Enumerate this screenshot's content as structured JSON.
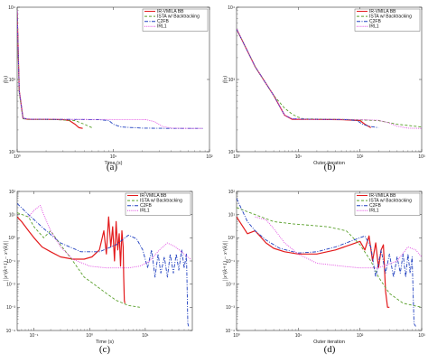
{
  "chart_data": [
    {
      "id": "a",
      "type": "line",
      "caption": "(a)",
      "xlabel": "Time (s)",
      "ylabel": "f(x)",
      "xscale": "log",
      "yscale": "log",
      "xlim": [
        1,
        100
      ],
      "ylim": [
        100,
        10000
      ],
      "xticks": [
        {
          "v": 1,
          "label": "10⁰"
        },
        {
          "v": 10,
          "label": "10¹"
        },
        {
          "v": 100,
          "label": "10²"
        }
      ],
      "yticks": [
        {
          "v": 100,
          "label": "10²"
        },
        {
          "v": 1000,
          "label": "10³"
        },
        {
          "v": 10000,
          "label": "10⁴"
        }
      ],
      "legend": "top-right",
      "series": [
        {
          "name": "IR-VMILA BB",
          "color": "#e31a1c",
          "dash": "solid",
          "x": [
            1,
            1.05,
            1.15,
            1.3,
            2,
            3,
            3.5,
            4,
            4.4,
            4.8
          ],
          "y": [
            9000,
            700,
            290,
            280,
            280,
            278,
            270,
            240,
            215,
            210
          ]
        },
        {
          "name": "ISTA w/ Backtracking",
          "color": "#5aa02c",
          "dash": "dashed",
          "x": [
            1,
            1.05,
            1.15,
            1.4,
            2.5,
            4,
            5,
            6
          ],
          "y": [
            9000,
            650,
            285,
            280,
            278,
            270,
            240,
            215
          ]
        },
        {
          "name": "C2FB",
          "color": "#1f3fbf",
          "dash": "dashdot",
          "x": [
            1,
            1.05,
            1.15,
            1.4,
            3,
            7,
            9,
            10,
            12,
            20,
            40,
            85
          ],
          "y": [
            9000,
            700,
            290,
            282,
            280,
            278,
            270,
            240,
            220,
            212,
            210,
            210
          ]
        },
        {
          "name": "IRL1",
          "color": "#e044e0",
          "dash": "dotted",
          "x": [
            1,
            1.05,
            1.15,
            1.4,
            4,
            10,
            22,
            27,
            32,
            40,
            60,
            85
          ],
          "y": [
            9000,
            700,
            290,
            282,
            280,
            279,
            278,
            260,
            225,
            212,
            210,
            210
          ]
        }
      ]
    },
    {
      "id": "b",
      "type": "line",
      "caption": "(b)",
      "xlabel": "Outer iteration",
      "ylabel": "f(x)",
      "xscale": "log",
      "yscale": "log",
      "xlim": [
        1,
        1000
      ],
      "ylim": [
        100,
        10000
      ],
      "xticks": [
        {
          "v": 1,
          "label": "10⁰"
        },
        {
          "v": 10,
          "label": "10¹"
        },
        {
          "v": 100,
          "label": "10²"
        },
        {
          "v": 1000,
          "label": "10³"
        }
      ],
      "yticks": [
        {
          "v": 100,
          "label": "10²"
        },
        {
          "v": 1000,
          "label": "10³"
        },
        {
          "v": 10000,
          "label": "10⁴"
        }
      ],
      "legend": "top-right",
      "series": [
        {
          "name": "IR-VMILA BB",
          "color": "#e31a1c",
          "dash": "solid",
          "x": [
            1,
            2,
            4,
            6,
            8,
            15,
            50,
            100,
            120,
            150
          ],
          "y": [
            5000,
            1500,
            600,
            320,
            280,
            280,
            278,
            270,
            240,
            215
          ]
        },
        {
          "name": "ISTA w/ Backtracking",
          "color": "#5aa02c",
          "dash": "dashed",
          "x": [
            1,
            2,
            4,
            6,
            8,
            10,
            12,
            50,
            200,
            400,
            1000
          ],
          "y": [
            5000,
            1500,
            600,
            400,
            330,
            300,
            285,
            280,
            270,
            240,
            220
          ]
        },
        {
          "name": "C2FB",
          "color": "#1f3fbf",
          "dash": "dashdot",
          "x": [
            1,
            2,
            4,
            6,
            8,
            15,
            60,
            90,
            110,
            140,
            200
          ],
          "y": [
            5000,
            1500,
            600,
            320,
            285,
            282,
            278,
            270,
            240,
            225,
            215
          ]
        },
        {
          "name": "IRL1",
          "color": "#e044e0",
          "dash": "dotted",
          "x": [
            1,
            2,
            4,
            6,
            8,
            15,
            60,
            100,
            200,
            300,
            400,
            600,
            1000
          ],
          "y": [
            5000,
            1500,
            600,
            320,
            285,
            282,
            280,
            278,
            272,
            250,
            225,
            212,
            210
          ]
        }
      ]
    },
    {
      "id": "c",
      "type": "line",
      "caption": "(c)",
      "xlabel": "Time (s)",
      "ylabel": "||x^(k+1) − x^(k)||",
      "xscale": "log",
      "yscale": "log",
      "xlim": [
        0.05,
        70
      ],
      "ylim": [
        0.0001,
        100
      ],
      "xticks": [
        {
          "v": 0.1,
          "label": "10⁻¹"
        },
        {
          "v": 1,
          "label": "10⁰"
        },
        {
          "v": 10,
          "label": "10¹"
        }
      ],
      "yticks": [
        {
          "v": 0.0001,
          "label": "10⁻⁴"
        },
        {
          "v": 0.001,
          "label": "10⁻³"
        },
        {
          "v": 0.01,
          "label": "10⁻²"
        },
        {
          "v": 0.1,
          "label": "10⁻¹"
        },
        {
          "v": 1,
          "label": "10⁰"
        },
        {
          "v": 10,
          "label": "10¹"
        },
        {
          "v": 100,
          "label": "10²"
        }
      ],
      "legend": "top-right",
      "series": [
        {
          "name": "IR-VMILA BB",
          "color": "#e31a1c",
          "dash": "solid",
          "x": [
            0.05,
            0.06,
            0.08,
            0.1,
            0.14,
            0.2,
            0.3,
            0.5,
            0.8,
            1.1,
            1.5,
            1.8,
            2.0,
            2.2,
            2.4,
            2.6,
            2.8,
            3.0,
            3.2,
            3.4,
            3.6,
            3.8,
            4.0,
            4.1,
            4.2,
            4.3
          ],
          "y": [
            8,
            5,
            2,
            1,
            0.4,
            0.25,
            0.15,
            0.12,
            0.12,
            0.15,
            0.3,
            2,
            0.2,
            8,
            0.4,
            3,
            0.1,
            5,
            0.3,
            1.5,
            0.06,
            2,
            0.4,
            0.02,
            0.002,
            0.0015
          ]
        },
        {
          "name": "ISTA w/ Backtracking",
          "color": "#5aa02c",
          "dash": "dashed",
          "x": [
            0.05,
            0.08,
            0.1,
            0.15,
            0.2,
            0.3,
            0.5,
            0.8,
            1.2,
            2,
            3,
            5,
            8
          ],
          "y": [
            12,
            8,
            3,
            1,
            2,
            0.5,
            0.1,
            0.02,
            0.01,
            0.004,
            0.002,
            0.0012,
            0.001
          ]
        },
        {
          "name": "C2FB",
          "color": "#1f3fbf",
          "dash": "dashdot",
          "x": [
            0.05,
            0.08,
            0.15,
            0.3,
            0.7,
            1.5,
            3,
            5,
            7,
            9,
            11,
            13,
            15,
            17,
            19,
            22,
            25,
            28,
            32,
            36,
            40,
            45,
            50,
            55,
            58,
            60
          ],
          "y": [
            30,
            10,
            2.5,
            0.6,
            0.25,
            0.25,
            0.5,
            1.3,
            0.9,
            0.3,
            0.05,
            0.3,
            0.02,
            0.2,
            0.03,
            0.15,
            0.02,
            0.2,
            0.03,
            0.2,
            0.04,
            0.3,
            0.05,
            0.2,
            0.0002,
            0.00015
          ]
        },
        {
          "name": "IRL1",
          "color": "#e044e0",
          "dash": "dotted",
          "x": [
            0.08,
            0.1,
            0.13,
            0.15,
            0.2,
            0.3,
            0.5,
            1,
            2,
            5,
            8,
            12,
            18,
            25,
            35,
            50,
            65
          ],
          "y": [
            8,
            15,
            25,
            10,
            2,
            0.4,
            0.12,
            0.06,
            0.05,
            0.05,
            0.06,
            0.1,
            0.3,
            0.6,
            0.4,
            0.2,
            0.12
          ]
        }
      ]
    },
    {
      "id": "d",
      "type": "line",
      "caption": "(d)",
      "xlabel": "Outer iteration",
      "ylabel": "||x^(k+1) − x^(k)||",
      "xscale": "log",
      "yscale": "log",
      "xlim": [
        1,
        1000
      ],
      "ylim": [
        0.0001,
        100
      ],
      "xticks": [
        {
          "v": 1,
          "label": "10⁰"
        },
        {
          "v": 10,
          "label": "10¹"
        },
        {
          "v": 100,
          "label": "10²"
        },
        {
          "v": 1000,
          "label": "10³"
        }
      ],
      "yticks": [
        {
          "v": 0.0001,
          "label": "10⁻⁴"
        },
        {
          "v": 0.001,
          "label": "10⁻³"
        },
        {
          "v": 0.01,
          "label": "10⁻²"
        },
        {
          "v": 0.1,
          "label": "10⁻¹"
        },
        {
          "v": 1,
          "label": "10⁰"
        },
        {
          "v": 10,
          "label": "10¹"
        },
        {
          "v": 100,
          "label": "10²"
        }
      ],
      "legend": "top-right",
      "series": [
        {
          "name": "IR-VMILA BB",
          "color": "#e31a1c",
          "dash": "solid",
          "x": [
            1,
            1.5,
            2,
            3,
            4,
            6,
            10,
            20,
            40,
            70,
            100,
            120,
            140,
            160,
            180,
            200,
            220,
            240,
            260,
            280,
            300
          ],
          "y": [
            8,
            1.5,
            2,
            0.6,
            0.35,
            0.25,
            0.2,
            0.2,
            0.3,
            0.5,
            0.7,
            0.3,
            1.2,
            0.1,
            0.6,
            0.05,
            0.3,
            0.5,
            0.005,
            0.001,
            0.001
          ]
        },
        {
          "name": "ISTA w/ Backtracking",
          "color": "#5aa02c",
          "dash": "dashed",
          "x": [
            1,
            2,
            4,
            8,
            15,
            30,
            60,
            100,
            150,
            200,
            300,
            500,
            1000
          ],
          "y": [
            20,
            10,
            5,
            4,
            3.5,
            3,
            2,
            0.5,
            0.1,
            0.02,
            0.004,
            0.0015,
            0.001
          ]
        },
        {
          "name": "C2FB",
          "color": "#1f3fbf",
          "dash": "dashdot",
          "x": [
            1,
            1.5,
            2,
            3,
            5,
            10,
            20,
            40,
            80,
            120,
            150,
            180,
            220,
            260,
            300,
            350,
            400,
            450,
            500,
            550,
            600,
            650,
            700,
            750,
            800
          ],
          "y": [
            50,
            5,
            2,
            0.8,
            0.35,
            0.22,
            0.25,
            0.4,
            0.8,
            1.2,
            0.4,
            0.02,
            0.3,
            0.03,
            0.2,
            0.02,
            0.15,
            0.03,
            0.2,
            0.02,
            0.2,
            0.03,
            0.15,
            0.0002,
            0.00015
          ]
        },
        {
          "name": "IRL1",
          "color": "#e044e0",
          "dash": "dotted",
          "x": [
            2,
            3,
            4,
            6,
            10,
            20,
            50,
            100,
            200,
            400,
            600,
            800,
            1000
          ],
          "y": [
            8,
            6,
            2.5,
            0.6,
            0.2,
            0.08,
            0.06,
            0.05,
            0.05,
            0.1,
            0.4,
            0.3,
            0.15
          ]
        }
      ]
    }
  ]
}
